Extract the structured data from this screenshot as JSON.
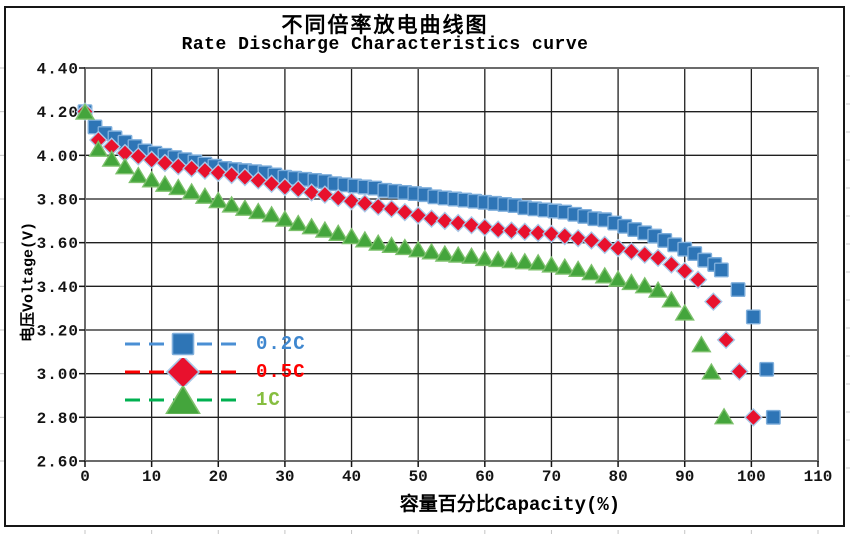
{
  "header": {
    "title_cn": "不同倍率放电曲线图",
    "title_en": "Rate Discharge Characteristics curve"
  },
  "axes": {
    "x_title": "容量百分比Capacity(%)",
    "y_title": "电压Voltage(V)",
    "x_ticks": [
      "0",
      "10",
      "20",
      "30",
      "40",
      "50",
      "60",
      "70",
      "80",
      "90",
      "100",
      "110"
    ],
    "y_ticks": [
      "4.40",
      "4.20",
      "4.00",
      "3.80",
      "3.60",
      "3.40",
      "3.20",
      "3.00",
      "2.80",
      "2.60"
    ],
    "x_min": 0,
    "x_max": 110,
    "y_min": 2.6,
    "y_max": 4.4,
    "grid_color": "#1f1f1f",
    "border_color": "#6b6b6b",
    "text_color": "#141414"
  },
  "legend": {
    "items": [
      {
        "label": "0.2C",
        "marker": "square",
        "fill": "#2E75B6",
        "stroke": "#7EAEDB",
        "line_color": "#4A8FD4",
        "label_color": "#3F87CF"
      },
      {
        "label": "0.5C",
        "marker": "diamond",
        "fill": "#E8112D",
        "stroke": "#A8C8E8",
        "line_color": "#FF0000",
        "label_color": "#FF0000"
      },
      {
        "label": "1C",
        "marker": "triangle",
        "fill": "#44A53C",
        "stroke": "#7CC06B",
        "line_color": "#00B050",
        "label_color": "#86BE40"
      }
    ]
  },
  "chart_data": {
    "type": "scatter",
    "title": "不同倍率放电曲线图 / Rate Discharge Characteristics curve",
    "xlabel": "容量百分比Capacity(%)",
    "ylabel": "电压Voltage(V)",
    "xlim": [
      0,
      110
    ],
    "ylim": [
      2.6,
      4.4
    ],
    "x_tick_step": 10,
    "y_tick_step": 0.2,
    "grid": true,
    "legend_position": "inside-left",
    "series": [
      {
        "name": "0.2C",
        "marker": "square",
        "color": "#2E75B6",
        "marker_stroke": "#7EAEDB",
        "points": [
          [
            0,
            4.2
          ],
          [
            1.5,
            4.13
          ],
          [
            3,
            4.1
          ],
          [
            4.5,
            4.08
          ],
          [
            6,
            4.06
          ],
          [
            7.5,
            4.04
          ],
          [
            9,
            4.02
          ],
          [
            10.5,
            4.01
          ],
          [
            12,
            4.0
          ],
          [
            13.5,
            3.99
          ],
          [
            15,
            3.98
          ],
          [
            16.5,
            3.97
          ],
          [
            18,
            3.96
          ],
          [
            19.5,
            3.95
          ],
          [
            21,
            3.94
          ],
          [
            22.5,
            3.935
          ],
          [
            24,
            3.93
          ],
          [
            25.5,
            3.925
          ],
          [
            27,
            3.92
          ],
          [
            28.5,
            3.91
          ],
          [
            30,
            3.9
          ],
          [
            31.5,
            3.895
          ],
          [
            33,
            3.89
          ],
          [
            34.5,
            3.885
          ],
          [
            36,
            3.88
          ],
          [
            37.5,
            3.87
          ],
          [
            39,
            3.865
          ],
          [
            40.5,
            3.86
          ],
          [
            42,
            3.855
          ],
          [
            43.5,
            3.85
          ],
          [
            45,
            3.84
          ],
          [
            46.5,
            3.835
          ],
          [
            48,
            3.83
          ],
          [
            49.5,
            3.825
          ],
          [
            51,
            3.82
          ],
          [
            52.5,
            3.81
          ],
          [
            54,
            3.805
          ],
          [
            55.5,
            3.8
          ],
          [
            57,
            3.795
          ],
          [
            58.5,
            3.79
          ],
          [
            60,
            3.785
          ],
          [
            61.5,
            3.78
          ],
          [
            63,
            3.775
          ],
          [
            64.5,
            3.77
          ],
          [
            66,
            3.76
          ],
          [
            67.5,
            3.755
          ],
          [
            69,
            3.75
          ],
          [
            70.5,
            3.745
          ],
          [
            72,
            3.74
          ],
          [
            73.5,
            3.73
          ],
          [
            75,
            3.72
          ],
          [
            76.5,
            3.71
          ],
          [
            78,
            3.705
          ],
          [
            79.5,
            3.69
          ],
          [
            81,
            3.675
          ],
          [
            82.5,
            3.66
          ],
          [
            84,
            3.645
          ],
          [
            85.5,
            3.63
          ],
          [
            87,
            3.61
          ],
          [
            88.5,
            3.59
          ],
          [
            90,
            3.57
          ],
          [
            91.5,
            3.55
          ],
          [
            93,
            3.52
          ],
          [
            94.5,
            3.5
          ],
          [
            95.5,
            3.475
          ],
          [
            98,
            3.385
          ],
          [
            100.3,
            3.26
          ],
          [
            102.3,
            3.02
          ],
          [
            103.3,
            2.8
          ]
        ]
      },
      {
        "name": "0.5C",
        "marker": "diamond",
        "color": "#E8112D",
        "marker_stroke": "#A8C8E8",
        "points": [
          [
            0,
            4.2
          ],
          [
            2,
            4.07
          ],
          [
            4,
            4.04
          ],
          [
            6,
            4.01
          ],
          [
            8,
            3.995
          ],
          [
            10,
            3.98
          ],
          [
            12,
            3.965
          ],
          [
            14,
            3.95
          ],
          [
            16,
            3.94
          ],
          [
            18,
            3.93
          ],
          [
            20,
            3.92
          ],
          [
            22,
            3.91
          ],
          [
            24,
            3.9
          ],
          [
            26,
            3.885
          ],
          [
            28,
            3.87
          ],
          [
            30,
            3.855
          ],
          [
            32,
            3.845
          ],
          [
            34,
            3.83
          ],
          [
            36,
            3.82
          ],
          [
            38,
            3.805
          ],
          [
            40,
            3.79
          ],
          [
            42,
            3.78
          ],
          [
            44,
            3.765
          ],
          [
            46,
            3.755
          ],
          [
            48,
            3.74
          ],
          [
            50,
            3.725
          ],
          [
            52,
            3.71
          ],
          [
            54,
            3.7
          ],
          [
            56,
            3.69
          ],
          [
            58,
            3.68
          ],
          [
            60,
            3.67
          ],
          [
            62,
            3.66
          ],
          [
            64,
            3.655
          ],
          [
            66,
            3.65
          ],
          [
            68,
            3.645
          ],
          [
            70,
            3.64
          ],
          [
            72,
            3.63
          ],
          [
            74,
            3.62
          ],
          [
            76,
            3.61
          ],
          [
            78,
            3.59
          ],
          [
            80,
            3.575
          ],
          [
            82,
            3.56
          ],
          [
            84,
            3.545
          ],
          [
            86,
            3.53
          ],
          [
            88,
            3.5
          ],
          [
            90,
            3.47
          ],
          [
            92,
            3.43
          ],
          [
            94.3,
            3.33
          ],
          [
            96.2,
            3.155
          ],
          [
            98.2,
            3.01
          ],
          [
            100.3,
            2.8
          ]
        ]
      },
      {
        "name": "1C",
        "marker": "triangle",
        "color": "#44A53C",
        "marker_stroke": "#7CC06B",
        "points": [
          [
            0,
            4.2
          ],
          [
            2,
            4.03
          ],
          [
            4,
            3.985
          ],
          [
            6,
            3.95
          ],
          [
            8,
            3.91
          ],
          [
            10,
            3.89
          ],
          [
            12,
            3.87
          ],
          [
            14,
            3.855
          ],
          [
            16,
            3.835
          ],
          [
            18,
            3.815
          ],
          [
            20,
            3.795
          ],
          [
            22,
            3.775
          ],
          [
            24,
            3.76
          ],
          [
            26,
            3.745
          ],
          [
            28,
            3.73
          ],
          [
            30,
            3.71
          ],
          [
            32,
            3.69
          ],
          [
            34,
            3.675
          ],
          [
            36,
            3.66
          ],
          [
            38,
            3.645
          ],
          [
            40,
            3.63
          ],
          [
            42,
            3.615
          ],
          [
            44,
            3.6
          ],
          [
            46,
            3.59
          ],
          [
            48,
            3.58
          ],
          [
            50,
            3.57
          ],
          [
            52,
            3.56
          ],
          [
            54,
            3.55
          ],
          [
            56,
            3.545
          ],
          [
            58,
            3.54
          ],
          [
            60,
            3.53
          ],
          [
            62,
            3.525
          ],
          [
            64,
            3.52
          ],
          [
            66,
            3.515
          ],
          [
            68,
            3.51
          ],
          [
            70,
            3.5
          ],
          [
            72,
            3.49
          ],
          [
            74,
            3.48
          ],
          [
            76,
            3.465
          ],
          [
            78,
            3.45
          ],
          [
            80,
            3.435
          ],
          [
            82,
            3.42
          ],
          [
            84,
            3.405
          ],
          [
            86,
            3.385
          ],
          [
            88,
            3.34
          ],
          [
            90,
            3.28
          ],
          [
            92.5,
            3.135
          ],
          [
            94,
            3.01
          ],
          [
            95.9,
            2.805
          ]
        ]
      }
    ]
  }
}
